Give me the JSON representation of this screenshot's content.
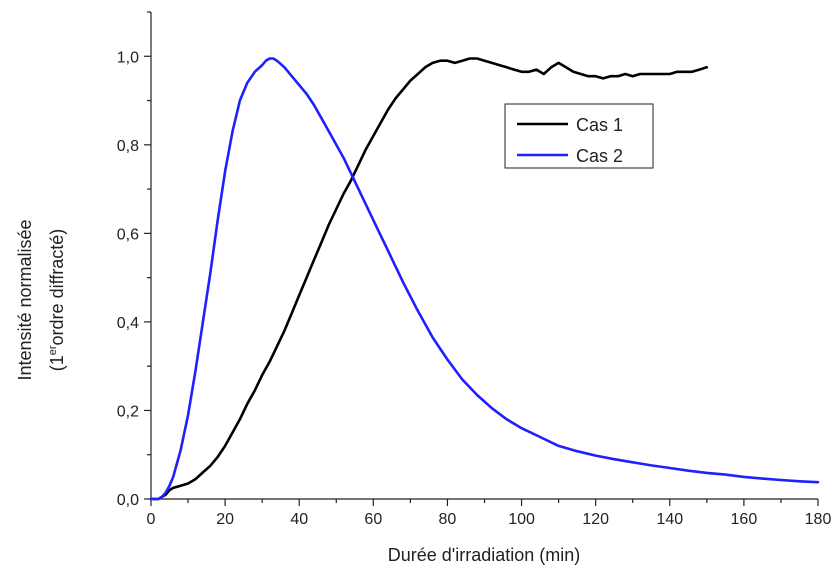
{
  "chart_data": {
    "type": "line",
    "xlabel": "Durée d'irradiation (min)",
    "ylabel_line1": "Intensité normalisée",
    "ylabel_line2_prefix": "(1",
    "ylabel_line2_sup": "er",
    "ylabel_line2_suffix": "ordre diffracté)",
    "xlim": [
      0,
      180
    ],
    "ylim": [
      0,
      1.1
    ],
    "xticks": [
      0,
      20,
      40,
      60,
      80,
      100,
      120,
      140,
      160,
      180
    ],
    "xtick_labels": [
      "0",
      "20",
      "40",
      "60",
      "80",
      "100",
      "120",
      "140",
      "160",
      "180"
    ],
    "yticks": [
      0,
      0.2,
      0.4,
      0.6,
      0.8,
      1.0
    ],
    "ytick_labels": [
      "0,0",
      "0,2",
      "0,4",
      "0,6",
      "0,8",
      "1,0"
    ],
    "grid": false,
    "legend_position": "top-right",
    "series": [
      {
        "name": "Cas 1",
        "color": "#000000",
        "x": [
          0,
          2,
          3,
          4,
          5,
          6,
          8,
          10,
          12,
          14,
          16,
          18,
          20,
          22,
          24,
          26,
          28,
          30,
          32,
          34,
          36,
          38,
          40,
          42,
          44,
          46,
          48,
          50,
          52,
          54,
          56,
          58,
          60,
          62,
          64,
          66,
          68,
          70,
          72,
          74,
          76,
          78,
          80,
          82,
          84,
          86,
          88,
          90,
          92,
          94,
          96,
          98,
          100,
          102,
          104,
          106,
          108,
          110,
          112,
          114,
          116,
          118,
          120,
          122,
          124,
          126,
          128,
          130,
          132,
          134,
          136,
          138,
          140,
          142,
          144,
          146,
          148,
          150
        ],
        "y": [
          0.0,
          0.0,
          0.005,
          0.01,
          0.02,
          0.025,
          0.03,
          0.035,
          0.045,
          0.06,
          0.075,
          0.095,
          0.12,
          0.15,
          0.18,
          0.215,
          0.245,
          0.28,
          0.31,
          0.345,
          0.38,
          0.42,
          0.46,
          0.5,
          0.54,
          0.58,
          0.62,
          0.655,
          0.69,
          0.72,
          0.755,
          0.79,
          0.82,
          0.85,
          0.88,
          0.905,
          0.925,
          0.945,
          0.96,
          0.975,
          0.985,
          0.99,
          0.99,
          0.985,
          0.99,
          0.995,
          0.995,
          0.99,
          0.985,
          0.98,
          0.975,
          0.97,
          0.965,
          0.965,
          0.97,
          0.96,
          0.975,
          0.985,
          0.975,
          0.965,
          0.96,
          0.955,
          0.955,
          0.95,
          0.955,
          0.955,
          0.96,
          0.955,
          0.96,
          0.96,
          0.96,
          0.96,
          0.96,
          0.965,
          0.965,
          0.965,
          0.97,
          0.975
        ]
      },
      {
        "name": "Cas 2",
        "color": "#1f1fff",
        "x": [
          0,
          2,
          3,
          4,
          5,
          6,
          7,
          8,
          10,
          12,
          14,
          16,
          18,
          20,
          22,
          24,
          26,
          28,
          30,
          31,
          32,
          33,
          34,
          36,
          38,
          40,
          42,
          44,
          46,
          48,
          50,
          52,
          54,
          56,
          58,
          60,
          64,
          68,
          72,
          76,
          80,
          84,
          88,
          92,
          96,
          100,
          105,
          110,
          115,
          120,
          125,
          130,
          135,
          140,
          145,
          150,
          155,
          160,
          165,
          170,
          175,
          180
        ],
        "y": [
          0.0,
          0.0,
          0.005,
          0.015,
          0.03,
          0.05,
          0.08,
          0.11,
          0.19,
          0.29,
          0.4,
          0.51,
          0.63,
          0.74,
          0.83,
          0.9,
          0.94,
          0.965,
          0.98,
          0.99,
          0.995,
          0.995,
          0.99,
          0.975,
          0.955,
          0.935,
          0.915,
          0.89,
          0.86,
          0.83,
          0.8,
          0.77,
          0.735,
          0.7,
          0.665,
          0.63,
          0.56,
          0.49,
          0.425,
          0.365,
          0.315,
          0.27,
          0.235,
          0.205,
          0.18,
          0.16,
          0.14,
          0.12,
          0.108,
          0.098,
          0.09,
          0.083,
          0.076,
          0.07,
          0.064,
          0.059,
          0.055,
          0.05,
          0.046,
          0.043,
          0.04,
          0.038
        ]
      }
    ]
  }
}
